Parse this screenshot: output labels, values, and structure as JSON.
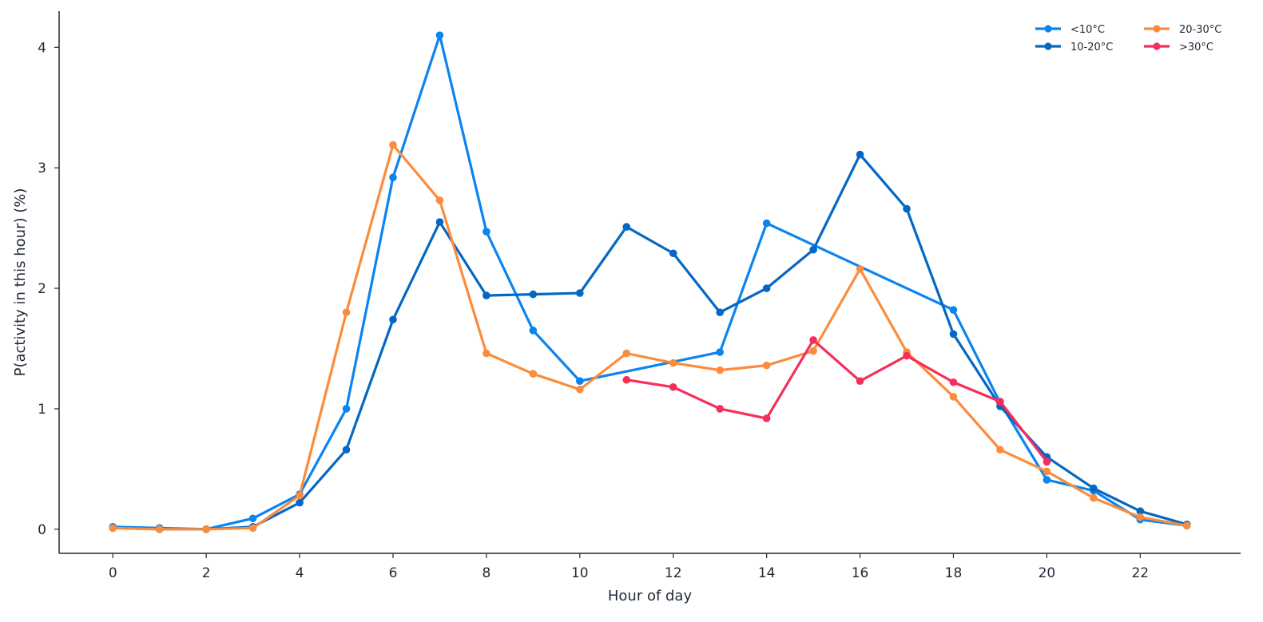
{
  "chart_data": {
    "type": "line",
    "title": "",
    "xlabel": "Hour of day",
    "ylabel": "P(activity in this hour) (%)",
    "xlim": [
      -1.15,
      24.15
    ],
    "ylim": [
      -0.2,
      4.3
    ],
    "xticks": [
      0,
      2,
      4,
      6,
      8,
      10,
      12,
      14,
      16,
      18,
      20,
      22
    ],
    "yticks": [
      0,
      1,
      2,
      3,
      4
    ],
    "grid": false,
    "legend_position": "top-right",
    "series": [
      {
        "name": "<10°C",
        "color": "#0a84f0",
        "x": [
          0,
          1,
          2,
          3,
          4,
          5,
          6,
          7,
          8,
          9,
          10,
          13,
          14,
          18,
          19,
          20,
          21,
          22,
          23
        ],
        "y": [
          0.02,
          0.01,
          0.0,
          0.09,
          0.29,
          1.0,
          2.92,
          4.1,
          2.47,
          1.65,
          1.23,
          1.47,
          2.54,
          1.82,
          1.05,
          0.41,
          0.32,
          0.08,
          0.03
        ]
      },
      {
        "name": "10-20°C",
        "color": "#0567c4",
        "x": [
          0,
          1,
          2,
          3,
          4,
          5,
          6,
          7,
          8,
          9,
          10,
          11,
          12,
          13,
          14,
          15,
          16,
          17,
          18,
          19,
          20,
          21,
          22,
          23
        ],
        "y": [
          0.01,
          0.0,
          0.0,
          0.02,
          0.22,
          0.66,
          1.74,
          2.55,
          1.94,
          1.95,
          1.96,
          2.51,
          2.29,
          1.8,
          2.0,
          2.32,
          3.11,
          2.66,
          1.62,
          1.02,
          0.6,
          0.34,
          0.15,
          0.04
        ]
      },
      {
        "name": "20-30°C",
        "color": "#fa8c3c",
        "x": [
          0,
          1,
          2,
          3,
          4,
          5,
          6,
          7,
          8,
          9,
          10,
          11,
          12,
          13,
          14,
          15,
          16,
          17,
          18,
          19,
          20,
          21,
          22,
          23
        ],
        "y": [
          0.01,
          0.0,
          0.0,
          0.01,
          0.28,
          1.8,
          3.19,
          2.73,
          1.46,
          1.29,
          1.16,
          1.46,
          1.38,
          1.32,
          1.36,
          1.48,
          2.16,
          1.47,
          1.1,
          0.66,
          0.48,
          0.26,
          0.1,
          0.03
        ]
      },
      {
        "name": ">30°C",
        "color": "#f72d5a",
        "x": [
          11,
          12,
          13,
          14,
          15,
          16,
          17,
          18,
          19,
          20
        ],
        "y": [
          1.24,
          1.18,
          1.0,
          0.92,
          1.57,
          1.23,
          1.44,
          1.22,
          1.06,
          0.56
        ]
      }
    ]
  }
}
